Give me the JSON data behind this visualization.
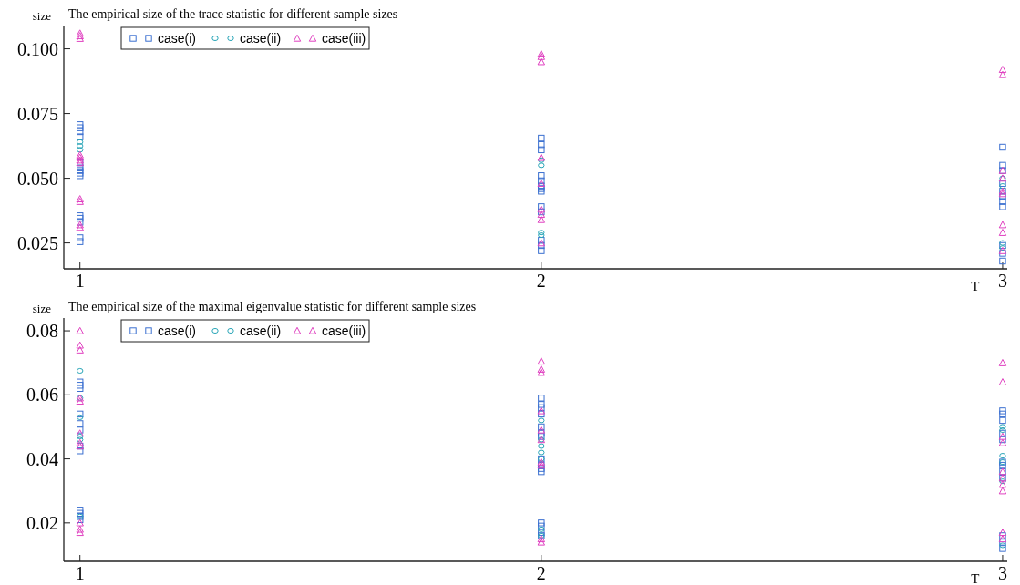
{
  "chart_data": [
    {
      "type": "scatter",
      "title": "The empirical size of the trace statistic for different sample sizes",
      "xlabel": "T",
      "ylabel": "size",
      "xlim": [
        0.965,
        3.01
      ],
      "xticks": [
        1,
        2,
        3
      ],
      "ylim": [
        0.015,
        0.109
      ],
      "yticks": [
        {
          "value": 0.025,
          "label": "0.025"
        },
        {
          "value": 0.05,
          "label": "0.050"
        },
        {
          "value": 0.075,
          "label": "0.075"
        },
        {
          "value": 0.1,
          "label": "0.100"
        }
      ],
      "grid": false,
      "legend": "top left",
      "series": [
        {
          "name": "case(i)",
          "color": "#3a6fd0",
          "marker": "square",
          "x": [
            1,
            1,
            1,
            1,
            1,
            1,
            1,
            1,
            1,
            1,
            1,
            1,
            1,
            1,
            2,
            2,
            2,
            2,
            2,
            2,
            2,
            2,
            2,
            2,
            2,
            2,
            2,
            3,
            3,
            3,
            3,
            3,
            3,
            3,
            3,
            3,
            3,
            3
          ],
          "values": [
            0.0707,
            0.0695,
            0.068,
            0.066,
            0.056,
            0.054,
            0.053,
            0.052,
            0.051,
            0.0355,
            0.0345,
            0.033,
            0.027,
            0.0255,
            0.0655,
            0.063,
            0.061,
            0.051,
            0.049,
            0.047,
            0.046,
            0.045,
            0.039,
            0.037,
            0.026,
            0.024,
            0.022,
            0.062,
            0.055,
            0.053,
            0.048,
            0.045,
            0.043,
            0.041,
            0.039,
            0.024,
            0.021,
            0.018
          ]
        },
        {
          "name": "case(ii)",
          "color": "#2aa6b8",
          "marker": "circle",
          "x": [
            1,
            1,
            1,
            2,
            2,
            2,
            2,
            3,
            3,
            3,
            3
          ],
          "values": [
            0.064,
            0.0625,
            0.061,
            0.057,
            0.055,
            0.029,
            0.028,
            0.05,
            0.047,
            0.025,
            0.023
          ]
        },
        {
          "name": "case(iii)",
          "color": "#e040c0",
          "marker": "triangle",
          "x": [
            1,
            1,
            1,
            1,
            1,
            1,
            1,
            1,
            1,
            1,
            1,
            2,
            2,
            2,
            2,
            2,
            2,
            2,
            2,
            2,
            3,
            3,
            3,
            3,
            3,
            3,
            3,
            3,
            3
          ],
          "values": [
            0.106,
            0.105,
            0.104,
            0.059,
            0.058,
            0.057,
            0.056,
            0.042,
            0.041,
            0.032,
            0.031,
            0.098,
            0.097,
            0.095,
            0.058,
            0.048,
            0.038,
            0.036,
            0.034,
            0.025,
            0.092,
            0.09,
            0.053,
            0.05,
            0.045,
            0.044,
            0.032,
            0.029,
            0.022
          ]
        }
      ]
    },
    {
      "type": "scatter",
      "title": "The empirical size of the maximal eigenvalue statistic for different sample sizes",
      "xlabel": "T",
      "ylabel": "size",
      "xlim": [
        0.965,
        3.01
      ],
      "xticks": [
        1,
        2,
        3
      ],
      "ylim": [
        0.008,
        0.084
      ],
      "yticks": [
        {
          "value": 0.02,
          "label": "0.02"
        },
        {
          "value": 0.04,
          "label": "0.04"
        },
        {
          "value": 0.06,
          "label": "0.06"
        },
        {
          "value": 0.08,
          "label": "0.08"
        }
      ],
      "grid": false,
      "legend": "top left",
      "series": [
        {
          "name": "case(i)",
          "color": "#3a6fd0",
          "marker": "square",
          "x": [
            1,
            1,
            1,
            1,
            1,
            1,
            1,
            1,
            1,
            1,
            1,
            1,
            2,
            2,
            2,
            2,
            2,
            2,
            2,
            2,
            2,
            2,
            2,
            2,
            2,
            2,
            2,
            3,
            3,
            3,
            3,
            3,
            3,
            3,
            3,
            3,
            3,
            3,
            3
          ],
          "values": [
            0.064,
            0.063,
            0.062,
            0.054,
            0.051,
            0.049,
            0.044,
            0.0425,
            0.024,
            0.023,
            0.022,
            0.021,
            0.059,
            0.057,
            0.056,
            0.054,
            0.05,
            0.048,
            0.047,
            0.04,
            0.038,
            0.037,
            0.036,
            0.02,
            0.019,
            0.017,
            0.016,
            0.055,
            0.054,
            0.052,
            0.048,
            0.046,
            0.039,
            0.038,
            0.036,
            0.034,
            0.016,
            0.014,
            0.012
          ]
        },
        {
          "name": "case(ii)",
          "color": "#2aa6b8",
          "marker": "circle",
          "x": [
            1,
            1,
            1,
            1,
            1,
            1,
            2,
            2,
            2,
            2,
            2,
            2,
            2,
            3,
            3,
            3,
            3,
            3,
            3
          ],
          "values": [
            0.0675,
            0.059,
            0.053,
            0.047,
            0.046,
            0.022,
            0.052,
            0.046,
            0.044,
            0.042,
            0.04,
            0.018,
            0.016,
            0.05,
            0.049,
            0.041,
            0.039,
            0.033,
            0.013
          ]
        },
        {
          "name": "case(iii)",
          "color": "#e040c0",
          "marker": "triangle",
          "x": [
            1,
            1,
            1,
            1,
            1,
            1,
            1,
            1,
            1,
            1,
            1,
            2,
            2,
            2,
            2,
            2,
            2,
            2,
            2,
            2,
            2,
            3,
            3,
            3,
            3,
            3,
            3,
            3,
            3,
            3,
            3
          ],
          "values": [
            0.08,
            0.0755,
            0.074,
            0.059,
            0.058,
            0.048,
            0.045,
            0.044,
            0.02,
            0.018,
            0.017,
            0.0705,
            0.068,
            0.067,
            0.055,
            0.049,
            0.046,
            0.039,
            0.038,
            0.015,
            0.014,
            0.07,
            0.064,
            0.047,
            0.045,
            0.036,
            0.034,
            0.032,
            0.03,
            0.017,
            0.015
          ]
        }
      ]
    }
  ]
}
